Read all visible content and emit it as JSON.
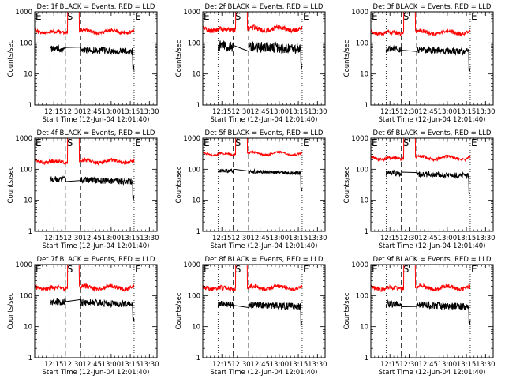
{
  "figure": {
    "background": "#ffffff",
    "frame_color": "#000000",
    "events_color": "#000000",
    "lld_color": "#ff0000"
  },
  "chart_data": [
    {
      "type": "line",
      "title": "Det 1f BLACK = Events, RED = LLD",
      "xlabel": "Start Time (12-Jun-04 12:01:40)",
      "ylabel": "Counts/sec",
      "y_scale": "log",
      "ylim": [
        1,
        1000
      ],
      "x_ticks": [
        "12:15",
        "12:30",
        "12:45",
        "13:00",
        "13:15",
        "13:30"
      ],
      "y_ticks": [
        "1",
        "10",
        "100",
        "1000"
      ],
      "markers": [
        "E",
        "S",
        "E"
      ],
      "series": [
        {
          "name": "Events",
          "color": "#000000",
          "base": 60,
          "noise": 0.22,
          "dip": [
            12.5,
            13.2
          ]
        },
        {
          "name": "LLD",
          "color": "#ff0000",
          "base": 230,
          "noise": 0.12
        }
      ]
    },
    {
      "type": "line",
      "title": "Det 2f BLACK = Events, RED = LLD",
      "xlabel": "Start Time (12-Jun-04 12:01:40)",
      "ylabel": "Counts/sec",
      "y_scale": "log",
      "ylim": [
        1,
        1000
      ],
      "x_ticks": [
        "12:15",
        "12:30",
        "12:45",
        "13:00",
        "13:15",
        "13:30"
      ],
      "y_ticks": [
        "1",
        "10",
        "100",
        "1000"
      ],
      "markers": [
        "E",
        "S",
        "E"
      ],
      "series": [
        {
          "name": "Events",
          "color": "#000000",
          "base": 75,
          "noise": 0.35,
          "dip": [
            12.5,
            13.2
          ]
        },
        {
          "name": "LLD",
          "color": "#ff0000",
          "base": 280,
          "noise": 0.15
        }
      ]
    },
    {
      "type": "line",
      "title": "Det 3f BLACK = Events, RED = LLD",
      "xlabel": "Start Time (12-Jun-04 12:01:40)",
      "ylabel": "Counts/sec",
      "y_scale": "log",
      "ylim": [
        1,
        1000
      ],
      "x_ticks": [
        "12:15",
        "12:30",
        "12:45",
        "13:00",
        "13:15",
        "13:30"
      ],
      "y_ticks": [
        "1",
        "10",
        "100",
        "1000"
      ],
      "markers": [
        "E",
        "S",
        "E"
      ],
      "series": [
        {
          "name": "Events",
          "color": "#000000",
          "base": 60,
          "noise": 0.22,
          "dip": [
            12.5,
            13.2
          ]
        },
        {
          "name": "LLD",
          "color": "#ff0000",
          "base": 220,
          "noise": 0.12
        }
      ]
    },
    {
      "type": "line",
      "title": "Det 4f BLACK = Events, RED = LLD",
      "xlabel": "Start Time (12-Jun-04 12:01:40)",
      "ylabel": "Counts/sec",
      "y_scale": "log",
      "ylim": [
        1,
        1000
      ],
      "x_ticks": [
        "12:15",
        "12:30",
        "12:45",
        "13:00",
        "13:15",
        "13:30"
      ],
      "y_ticks": [
        "1",
        "10",
        "100",
        "1000"
      ],
      "markers": [
        "E",
        "S",
        "E"
      ],
      "series": [
        {
          "name": "Events",
          "color": "#000000",
          "base": 45,
          "noise": 0.2,
          "dip": [
            12.5,
            13.2
          ]
        },
        {
          "name": "LLD",
          "color": "#ff0000",
          "base": 180,
          "noise": 0.12
        }
      ]
    },
    {
      "type": "line",
      "title": "Det 5f BLACK = Events, RED = LLD",
      "xlabel": "Start Time (12-Jun-04 12:01:40)",
      "ylabel": "Counts/sec",
      "y_scale": "log",
      "ylim": [
        1,
        1000
      ],
      "x_ticks": [
        "12:15",
        "12:30",
        "12:45",
        "13:00",
        "13:15",
        "13:30"
      ],
      "y_ticks": [
        "1",
        "10",
        "100",
        "1000"
      ],
      "markers": [
        "E",
        "S",
        "E"
      ],
      "series": [
        {
          "name": "Events",
          "color": "#000000",
          "base": 85,
          "noise": 0.12,
          "dip": [
            12.5,
            13.2
          ]
        },
        {
          "name": "LLD",
          "color": "#ff0000",
          "base": 320,
          "noise": 0.06
        }
      ]
    },
    {
      "type": "line",
      "title": "Det 6f BLACK = Events, RED = LLD",
      "xlabel": "Start Time (12-Jun-04 12:01:40)",
      "ylabel": "Counts/sec",
      "y_scale": "log",
      "ylim": [
        1,
        1000
      ],
      "x_ticks": [
        "12:15",
        "12:30",
        "12:45",
        "13:00",
        "13:15",
        "13:30"
      ],
      "y_ticks": [
        "1",
        "10",
        "100",
        "1000"
      ],
      "markers": [
        "E",
        "S",
        "E"
      ],
      "series": [
        {
          "name": "Events",
          "color": "#000000",
          "base": 70,
          "noise": 0.18,
          "dip": [
            12.5,
            13.2
          ]
        },
        {
          "name": "LLD",
          "color": "#ff0000",
          "base": 230,
          "noise": 0.1
        }
      ]
    },
    {
      "type": "line",
      "title": "Det 7f BLACK = Events, RED = LLD",
      "xlabel": "Start Time (12-Jun-04 12:01:40)",
      "ylabel": "Counts/sec",
      "y_scale": "log",
      "ylim": [
        1,
        1000
      ],
      "x_ticks": [
        "12:15",
        "12:30",
        "12:45",
        "13:00",
        "13:15",
        "13:30"
      ],
      "y_ticks": [
        "1",
        "10",
        "100",
        "1000"
      ],
      "markers": [
        "E",
        "S",
        "E"
      ],
      "series": [
        {
          "name": "Events",
          "color": "#000000",
          "base": 60,
          "noise": 0.22,
          "dip": [
            12.5,
            13.2
          ]
        },
        {
          "name": "LLD",
          "color": "#ff0000",
          "base": 180,
          "noise": 0.14
        }
      ]
    },
    {
      "type": "line",
      "title": "Det 8f BLACK = Events, RED = LLD",
      "xlabel": "Start Time (12-Jun-04 12:01:40)",
      "ylabel": "Counts/sec",
      "y_scale": "log",
      "ylim": [
        1,
        1000
      ],
      "x_ticks": [
        "12:15",
        "12:30",
        "12:45",
        "13:00",
        "13:15",
        "13:30"
      ],
      "y_ticks": [
        "1",
        "10",
        "100",
        "1000"
      ],
      "markers": [
        "E",
        "S",
        "E"
      ],
      "series": [
        {
          "name": "Events",
          "color": "#000000",
          "base": 50,
          "noise": 0.22,
          "dip": [
            12.5,
            13.2
          ]
        },
        {
          "name": "LLD",
          "color": "#ff0000",
          "base": 180,
          "noise": 0.14
        }
      ]
    },
    {
      "type": "line",
      "title": "Det 9f BLACK = Events, RED = LLD",
      "xlabel": "Start Time (12-Jun-04 12:01:40)",
      "ylabel": "Counts/sec",
      "y_scale": "log",
      "ylim": [
        1,
        1000
      ],
      "x_ticks": [
        "12:15",
        "12:30",
        "12:45",
        "13:00",
        "13:15",
        "13:30"
      ],
      "y_ticks": [
        "1",
        "10",
        "100",
        "1000"
      ],
      "markers": [
        "E",
        "S",
        "E"
      ],
      "series": [
        {
          "name": "Events",
          "color": "#000000",
          "base": 50,
          "noise": 0.22,
          "dip": [
            12.5,
            13.2
          ]
        },
        {
          "name": "LLD",
          "color": "#ff0000",
          "base": 180,
          "noise": 0.14
        }
      ]
    }
  ]
}
